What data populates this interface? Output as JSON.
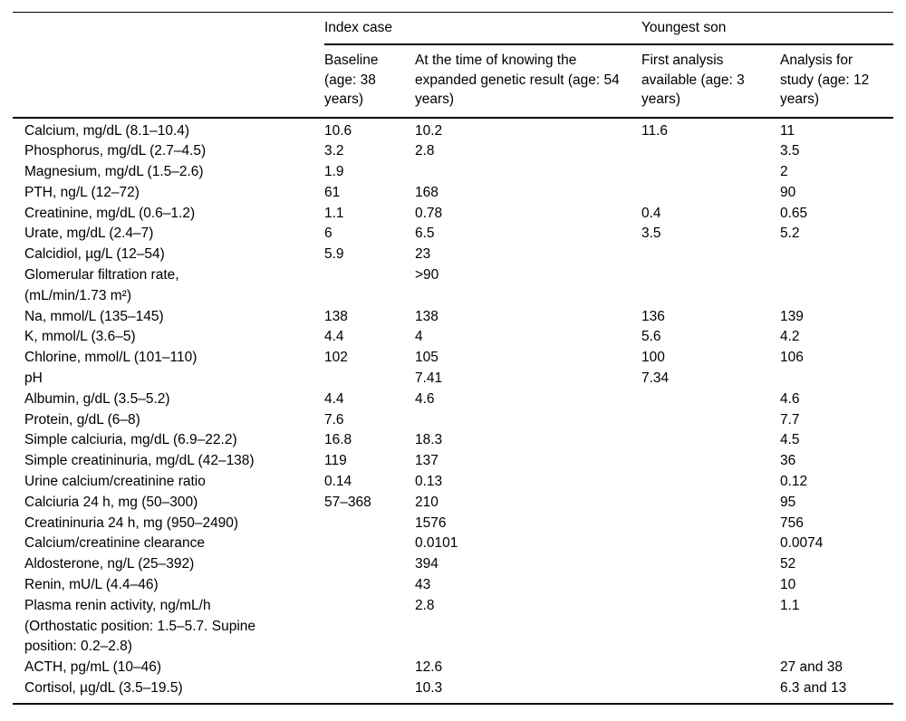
{
  "table": {
    "corner_label": "",
    "group_headers": [
      {
        "label": "Index case"
      },
      {
        "label": "Youngest son"
      }
    ],
    "column_headers": [
      "Baseline\n(age: 38\nyears)",
      "At the time of knowing the\nexpanded genetic result (age: 54\nyears)",
      "First analysis\navailable (age: 3\nyears)",
      "Analysis for\nstudy (age: 12\nyears)"
    ],
    "rows": [
      {
        "label": "Calcium, mg/dL (8.1–10.4)",
        "values": [
          "10.6",
          "10.2",
          "11.6",
          "11"
        ]
      },
      {
        "label": "Phosphorus, mg/dL (2.7–4.5)",
        "values": [
          "3.2",
          "2.8",
          "",
          "3.5"
        ]
      },
      {
        "label": "Magnesium, mg/dL (1.5–2.6)",
        "values": [
          "1.9",
          "",
          "",
          "2"
        ]
      },
      {
        "label": "PTH, ng/L (12–72)",
        "values": [
          "61",
          "168",
          "",
          "90"
        ]
      },
      {
        "label": "Creatinine, mg/dL (0.6–1.2)",
        "values": [
          "1.1",
          "0.78",
          "0.4",
          "0.65"
        ]
      },
      {
        "label": "Urate, mg/dL (2.4–7)",
        "values": [
          "6",
          "6.5",
          "3.5",
          "5.2"
        ]
      },
      {
        "label": "Calcidiol, µg/L (12–54)",
        "values": [
          "5.9",
          "23",
          "",
          ""
        ]
      },
      {
        "label": "Glomerular filtration rate,\n(mL/min/1.73 m²)",
        "values": [
          "",
          ">90",
          "",
          ""
        ]
      },
      {
        "label": "Na, mmol/L (135–145)",
        "values": [
          "138",
          "138",
          "136",
          "139"
        ]
      },
      {
        "label": "K, mmol/L (3.6–5)",
        "values": [
          "4.4",
          "4",
          "5.6",
          "4.2"
        ]
      },
      {
        "label": "Chlorine, mmol/L (101–110)",
        "values": [
          "102",
          "105",
          "100",
          "106"
        ]
      },
      {
        "label": "pH",
        "values": [
          "",
          "7.41",
          "7.34",
          ""
        ]
      },
      {
        "label": "Albumin, g/dL (3.5–5.2)",
        "values": [
          "4.4",
          "4.6",
          "",
          "4.6"
        ]
      },
      {
        "label": "Protein, g/dL (6–8)",
        "values": [
          "7.6",
          "",
          "",
          "7.7"
        ]
      },
      {
        "label": "Simple calciuria, mg/dL (6.9–22.2)",
        "values": [
          "16.8",
          "18.3",
          "",
          "4.5"
        ]
      },
      {
        "label": "Simple creatininuria, mg/dL (42–138)",
        "values": [
          "119",
          "137",
          "",
          "36"
        ]
      },
      {
        "label": "Urine calcium/creatinine ratio",
        "values": [
          "0.14",
          "0.13",
          "",
          "0.12"
        ]
      },
      {
        "label": "Calciuria 24 h, mg (50–300)",
        "values": [
          "57–368",
          "210",
          "",
          "95"
        ]
      },
      {
        "label": "Creatininuria 24 h, mg (950–2490)",
        "values": [
          "",
          "1576",
          "",
          "756"
        ]
      },
      {
        "label": "Calcium/creatinine clearance",
        "values": [
          "",
          "0.0101",
          "",
          "0.0074"
        ]
      },
      {
        "label": "Aldosterone, ng/L (25–392)",
        "values": [
          "",
          "394",
          "",
          "52"
        ]
      },
      {
        "label": "Renin, mU/L (4.4–46)",
        "values": [
          "",
          "43",
          "",
          "10"
        ]
      },
      {
        "label": "Plasma renin activity, ng/mL/h\n(Orthostatic position: 1.5–5.7. Supine\nposition: 0.2–2.8)",
        "values": [
          "",
          "2.8",
          "",
          "1.1"
        ]
      },
      {
        "label": "ACTH, pg/mL (10–46)",
        "values": [
          "",
          "12.6",
          "",
          "27 and 38"
        ]
      },
      {
        "label": "Cortisol, µg/dL (3.5–19.5)",
        "values": [
          "",
          "10.3",
          "",
          "6.3 and 13"
        ]
      }
    ]
  }
}
